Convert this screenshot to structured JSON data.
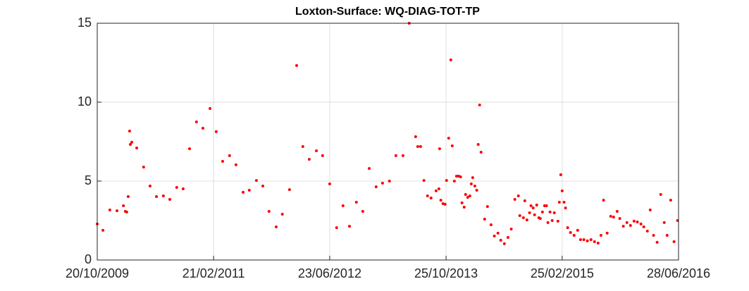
{
  "chart_data": {
    "type": "scatter",
    "title": "Loxton-Surface: WQ-DIAG-TOT-TP",
    "color": "#ff0000",
    "grid": true,
    "xlim": [
      "2009-10-20",
      "2016-06-28"
    ],
    "xticks": [
      {
        "value": "2009-10-20",
        "label": "20/10/2009"
      },
      {
        "value": "2011-02-21",
        "label": "21/02/2011"
      },
      {
        "value": "2012-06-23",
        "label": "23/06/2012"
      },
      {
        "value": "2013-10-25",
        "label": "25/10/2013"
      },
      {
        "value": "2015-02-25",
        "label": "25/02/2015"
      },
      {
        "value": "2016-06-28",
        "label": "28/06/2016"
      }
    ],
    "ylim": [
      0,
      15
    ],
    "yticks": [
      0,
      5,
      10,
      15
    ],
    "x": [
      "2009-10-20",
      "2009-11-13",
      "2009-12-12",
      "2010-01-11",
      "2010-02-07",
      "2010-02-15",
      "2010-02-21",
      "2010-02-27",
      "2010-03-05",
      "2010-03-08",
      "2010-03-14",
      "2010-04-04",
      "2010-05-03",
      "2010-05-30",
      "2010-06-26",
      "2010-07-25",
      "2010-08-21",
      "2010-09-19",
      "2010-10-16",
      "2010-11-12",
      "2010-12-11",
      "2011-01-07",
      "2011-02-06",
      "2011-03-04",
      "2011-03-31",
      "2011-04-29",
      "2011-05-26",
      "2011-06-25",
      "2011-07-21",
      "2011-08-20",
      "2011-09-16",
      "2011-10-12",
      "2011-11-11",
      "2011-12-07",
      "2012-01-06",
      "2012-02-05",
      "2012-03-02",
      "2012-03-29",
      "2012-04-28",
      "2012-05-24",
      "2012-06-23",
      "2012-07-22",
      "2012-08-18",
      "2012-09-14",
      "2012-10-13",
      "2012-11-09",
      "2012-12-06",
      "2013-01-04",
      "2013-01-31",
      "2013-03-01",
      "2013-03-28",
      "2013-04-27",
      "2013-05-23",
      "2013-06-19",
      "2013-06-28",
      "2013-07-10",
      "2013-07-24",
      "2013-08-08",
      "2013-08-23",
      "2013-09-13",
      "2013-09-25",
      "2013-09-28",
      "2013-10-03",
      "2013-10-12",
      "2013-10-21",
      "2013-10-27",
      "2013-11-05",
      "2013-11-14",
      "2013-11-20",
      "2013-11-29",
      "2013-12-08",
      "2013-12-17",
      "2013-12-25",
      "2013-12-31",
      "2014-01-09",
      "2014-01-15",
      "2014-01-24",
      "2014-02-02",
      "2014-02-08",
      "2014-02-14",
      "2014-02-23",
      "2014-03-03",
      "2014-03-09",
      "2014-03-15",
      "2014-03-21",
      "2014-04-05",
      "2014-04-17",
      "2014-05-02",
      "2014-05-16",
      "2014-05-31",
      "2014-06-12",
      "2014-06-27",
      "2014-07-12",
      "2014-07-26",
      "2014-08-10",
      "2014-08-25",
      "2014-08-31",
      "2014-09-15",
      "2014-09-21",
      "2014-09-30",
      "2014-10-11",
      "2014-10-17",
      "2014-10-26",
      "2014-11-01",
      "2014-11-10",
      "2014-11-19",
      "2014-11-25",
      "2014-12-04",
      "2014-12-13",
      "2014-12-21",
      "2014-12-27",
      "2015-01-05",
      "2015-01-14",
      "2015-01-23",
      "2015-02-07",
      "2015-02-13",
      "2015-02-19",
      "2015-02-25",
      "2015-03-05",
      "2015-03-11",
      "2015-03-20",
      "2015-04-01",
      "2015-04-16",
      "2015-05-01",
      "2015-05-13",
      "2015-05-27",
      "2015-06-11",
      "2015-06-26",
      "2015-07-11",
      "2015-07-26",
      "2015-08-07",
      "2015-08-18",
      "2015-09-02",
      "2015-09-17",
      "2015-09-29",
      "2015-10-14",
      "2015-10-25",
      "2015-11-09",
      "2015-11-24",
      "2015-12-09",
      "2015-12-24",
      "2016-01-07",
      "2016-01-22",
      "2016-02-03",
      "2016-02-18",
      "2016-03-01",
      "2016-03-15",
      "2016-03-30",
      "2016-04-14",
      "2016-04-29",
      "2016-05-11",
      "2016-05-26",
      "2016-06-09",
      "2016-06-24"
    ],
    "values": [
      2.28,
      1.88,
      3.17,
      3.12,
      3.44,
      3.08,
      3.04,
      4.02,
      8.17,
      7.32,
      7.46,
      7.1,
      5.89,
      4.69,
      4.02,
      4.06,
      3.84,
      4.6,
      4.51,
      7.05,
      8.75,
      8.35,
      9.6,
      8.13,
      6.25,
      6.61,
      6.03,
      4.29,
      4.42,
      5.04,
      4.69,
      3.08,
      2.1,
      2.9,
      4.46,
      12.32,
      7.19,
      6.38,
      6.92,
      6.61,
      4.82,
      2.05,
      3.44,
      2.14,
      3.66,
      3.08,
      5.8,
      4.64,
      4.87,
      5.0,
      6.61,
      6.61,
      15.0,
      7.81,
      7.19,
      7.19,
      5.04,
      4.06,
      3.93,
      4.38,
      4.51,
      7.05,
      3.79,
      3.57,
      3.53,
      5.04,
      7.72,
      12.68,
      7.23,
      5.0,
      5.31,
      5.31,
      5.27,
      3.62,
      3.35,
      4.15,
      3.97,
      4.06,
      4.82,
      5.22,
      4.69,
      4.42,
      7.32,
      9.82,
      6.83,
      2.59,
      3.39,
      2.23,
      1.52,
      1.7,
      1.25,
      1.03,
      1.43,
      1.96,
      3.84,
      4.06,
      2.81,
      2.68,
      3.75,
      2.54,
      2.99,
      3.44,
      3.3,
      2.86,
      3.48,
      2.68,
      2.63,
      3.04,
      3.44,
      3.44,
      2.37,
      3.04,
      2.5,
      2.99,
      2.46,
      3.66,
      5.4,
      4.38,
      3.66,
      3.3,
      2.05,
      1.74,
      1.56,
      1.88,
      1.29,
      1.29,
      1.21,
      1.29,
      1.16,
      1.07,
      1.56,
      3.79,
      1.7,
      2.77,
      2.72,
      3.08,
      2.63,
      2.14,
      2.37,
      2.19,
      2.46,
      2.41,
      2.28,
      2.1,
      1.83,
      3.17,
      1.56,
      1.12,
      4.15,
      2.37,
      1.56,
      3.79,
      1.16,
      2.5
    ]
  }
}
